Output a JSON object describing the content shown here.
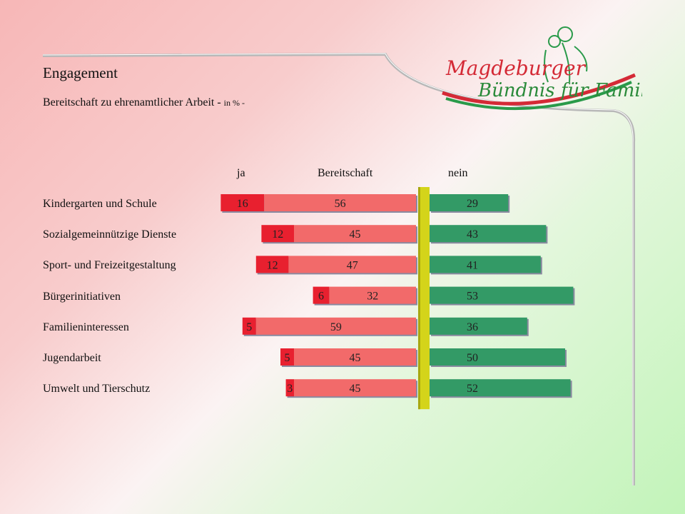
{
  "title": "Engagement",
  "subtitle": {
    "text": "Bereitschaft zu ehrenamtlicher Arbeit - ",
    "unit": "in % -"
  },
  "logo": {
    "line1": "Magdeburger",
    "line2": "Bündnis für Familie"
  },
  "colors": {
    "ja": "#e8202f",
    "bereitschaft": "#f26a6a",
    "nein": "#339a66",
    "center_bar": "#d4d41a"
  },
  "chart_data": {
    "type": "bar",
    "orientation": "horizontal-diverging",
    "headers": {
      "ja": "ja",
      "bereitschaft": "Bereitschaft",
      "nein": "nein"
    },
    "categories": [
      "Kindergarten und Schule",
      "Sozialgemeinnützige Dienste",
      "Sport- und Freizeitgestaltung",
      "Bürgerinitiativen",
      "Familieninteressen",
      "Jugendarbeit",
      "Umwelt und Tierschutz"
    ],
    "series": [
      {
        "name": "ja",
        "values": [
          16,
          12,
          12,
          6,
          5,
          5,
          3
        ]
      },
      {
        "name": "Bereitschaft",
        "values": [
          56,
          45,
          47,
          32,
          59,
          45,
          45
        ]
      },
      {
        "name": "nein",
        "values": [
          29,
          43,
          41,
          53,
          36,
          50,
          52
        ]
      }
    ]
  }
}
